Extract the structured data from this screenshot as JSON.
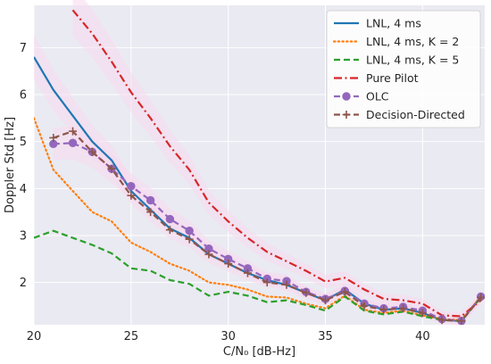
{
  "chart_data": {
    "type": "line",
    "xlabel": "C/N₀ [dB-Hz]",
    "ylabel": "Doppler Std [Hz]",
    "xlim": [
      20,
      43.2
    ],
    "ylim": [
      1.1,
      7.9
    ],
    "xticks": [
      20,
      25,
      30,
      35,
      40
    ],
    "yticks": [
      2,
      3,
      4,
      5,
      6,
      7
    ],
    "grid": true,
    "legend_position": "top-right",
    "colors": {
      "background": "#eaeaf2",
      "grid": "#ffffff",
      "band": "#f7d9ee"
    },
    "series": [
      {
        "name": "LNL, 4 ms",
        "style": "solid",
        "color": "#1f77b4",
        "marker": "none",
        "x": [
          20,
          21,
          22,
          23,
          24,
          25,
          26,
          27,
          28,
          29,
          30,
          31,
          32,
          33,
          34,
          35,
          36,
          37,
          38,
          39,
          40,
          41,
          42,
          43
        ],
        "y": [
          6.8,
          6.1,
          5.55,
          5.0,
          4.6,
          3.95,
          3.55,
          3.15,
          2.95,
          2.6,
          2.4,
          2.2,
          2.05,
          1.95,
          1.78,
          1.62,
          1.85,
          1.55,
          1.42,
          1.45,
          1.35,
          1.2,
          1.18,
          1.7
        ]
      },
      {
        "name": "LNL, 4 ms, K = 2",
        "style": "dotted",
        "color": "#ff7f0e",
        "marker": "none",
        "x": [
          20,
          21,
          22,
          23,
          24,
          25,
          26,
          27,
          28,
          29,
          30,
          31,
          32,
          33,
          34,
          35,
          36,
          37,
          38,
          39,
          40,
          41,
          42,
          43
        ],
        "y": [
          5.5,
          4.4,
          3.95,
          3.5,
          3.3,
          2.85,
          2.65,
          2.4,
          2.25,
          2.0,
          1.95,
          1.85,
          1.7,
          1.68,
          1.55,
          1.45,
          1.72,
          1.42,
          1.35,
          1.4,
          1.3,
          1.22,
          1.2,
          1.7
        ]
      },
      {
        "name": "LNL, 4 ms, K = 5",
        "style": "dashed",
        "color": "#2ca02c",
        "marker": "none",
        "x": [
          20,
          21,
          22,
          23,
          24,
          25,
          26,
          27,
          28,
          29,
          30,
          31,
          32,
          33,
          34,
          35,
          36,
          37,
          38,
          39,
          40,
          41,
          42,
          43
        ],
        "y": [
          2.95,
          3.1,
          2.95,
          2.8,
          2.62,
          2.3,
          2.25,
          2.05,
          1.97,
          1.72,
          1.8,
          1.72,
          1.58,
          1.62,
          1.52,
          1.4,
          1.7,
          1.4,
          1.32,
          1.38,
          1.28,
          1.2,
          1.18,
          1.68
        ]
      },
      {
        "name": "Pure Pilot",
        "style": "dashdot",
        "color": "#d62728",
        "marker": "none",
        "x": [
          22,
          23,
          24,
          25,
          26,
          27,
          28,
          29,
          30,
          31,
          32,
          33,
          34,
          35,
          36,
          37,
          38,
          39,
          40,
          41,
          42,
          43
        ],
        "y": [
          7.8,
          7.3,
          6.7,
          6.05,
          5.5,
          4.9,
          4.4,
          3.7,
          3.3,
          2.95,
          2.65,
          2.45,
          2.25,
          2.02,
          2.1,
          1.85,
          1.65,
          1.62,
          1.55,
          1.3,
          1.28,
          1.62
        ]
      },
      {
        "name": "OLC",
        "style": "dashed",
        "color": "#9467bd",
        "marker": "circle",
        "x": [
          21,
          22,
          23,
          24,
          25,
          26,
          27,
          28,
          29,
          30,
          31,
          32,
          33,
          34,
          35,
          36,
          37,
          38,
          39,
          40,
          41,
          42,
          43
        ],
        "y": [
          4.95,
          4.97,
          4.78,
          4.42,
          4.05,
          3.75,
          3.35,
          3.1,
          2.72,
          2.5,
          2.3,
          2.08,
          2.03,
          1.8,
          1.65,
          1.82,
          1.55,
          1.45,
          1.48,
          1.4,
          1.22,
          1.18,
          1.7
        ]
      },
      {
        "name": "Decision-Directed",
        "style": "dashed",
        "color": "#8c564b",
        "marker": "plus",
        "x": [
          21,
          22,
          23,
          24,
          25,
          26,
          27,
          28,
          29,
          30,
          31,
          32,
          33,
          34,
          35,
          36,
          37,
          38,
          39,
          40,
          41,
          42,
          43
        ],
        "y": [
          5.08,
          5.22,
          4.78,
          4.42,
          3.85,
          3.5,
          3.12,
          2.92,
          2.6,
          2.4,
          2.2,
          2.0,
          1.95,
          1.78,
          1.62,
          1.8,
          1.5,
          1.42,
          1.45,
          1.35,
          1.2,
          1.18,
          1.68
        ]
      }
    ]
  }
}
